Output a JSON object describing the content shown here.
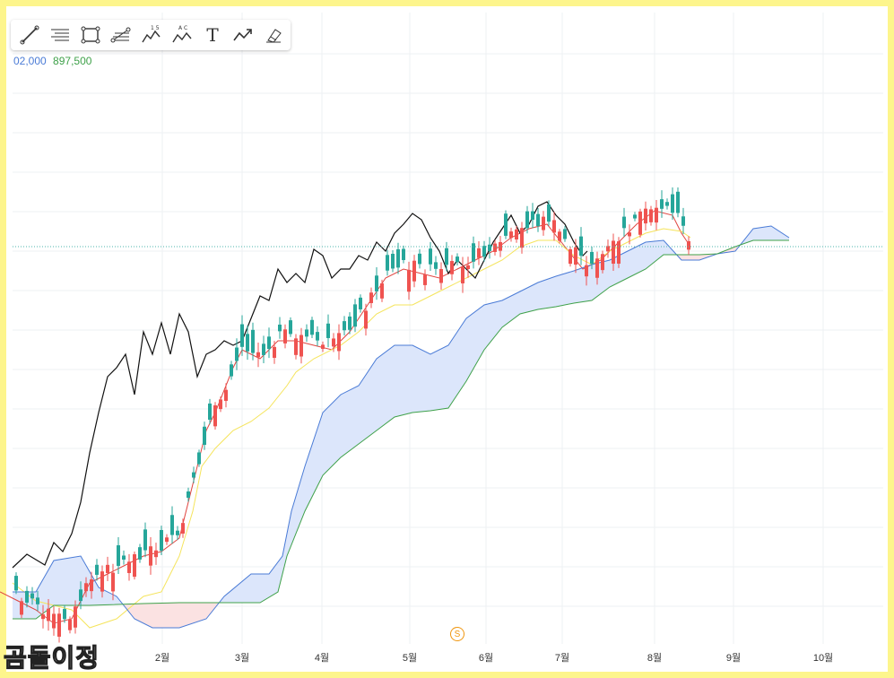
{
  "toolbar": {
    "tools": [
      "line-tool",
      "hline-tool",
      "rect-tool",
      "fib-tool",
      "wave-15-tool",
      "wave-ac-tool",
      "text-tool",
      "trend-tool",
      "brush-tool"
    ],
    "text_tool_label": "T",
    "wave_15_label": "1 5",
    "wave_ac_label": "A C"
  },
  "legend_values": {
    "span_a_value": "02,000",
    "span_b_value": "897,500"
  },
  "badge": {
    "label": "S"
  },
  "watermark": "곰돌이정",
  "colors": {
    "up": "#26a69a",
    "down": "#ef5350",
    "tenkan": "#e0443f",
    "kijun": "#f5e45c",
    "chikou": "#111111",
    "span_a": "#4a7bd6",
    "span_b": "#3fa14a",
    "cloud_bull": "#dce6fb",
    "cloud_bear": "#fbe2e2",
    "last_price": "#4db6ac"
  },
  "chart_data": {
    "type": "candlestick-ichimoku",
    "x_tick_labels": [
      "2월",
      "3월",
      "4월",
      "5월",
      "6월",
      "7월",
      "8월",
      "9월",
      "10월"
    ],
    "x_tick_months": [
      2,
      3,
      4,
      5,
      6,
      7,
      8,
      9,
      10
    ],
    "series": [
      {
        "name": "tenkan",
        "values": [
          [
            0,
            660
          ],
          [
            20,
            670
          ],
          [
            40,
            680
          ],
          [
            60,
            695
          ],
          [
            80,
            690
          ],
          [
            100,
            650
          ],
          [
            120,
            640
          ],
          [
            140,
            630
          ],
          [
            160,
            620
          ],
          [
            180,
            615
          ],
          [
            200,
            600
          ],
          [
            210,
            560
          ],
          [
            220,
            520
          ],
          [
            230,
            480
          ],
          [
            240,
            460
          ],
          [
            260,
            410
          ],
          [
            270,
            390
          ],
          [
            290,
            400
          ],
          [
            310,
            380
          ],
          [
            330,
            380
          ],
          [
            350,
            385
          ],
          [
            370,
            390
          ],
          [
            390,
            370
          ],
          [
            410,
            340
          ],
          [
            430,
            310
          ],
          [
            450,
            300
          ],
          [
            470,
            305
          ],
          [
            490,
            310
          ],
          [
            510,
            300
          ],
          [
            530,
            290
          ],
          [
            550,
            280
          ],
          [
            570,
            265
          ],
          [
            590,
            255
          ],
          [
            610,
            250
          ],
          [
            630,
            275
          ],
          [
            650,
            300
          ],
          [
            670,
            290
          ],
          [
            690,
            270
          ],
          [
            710,
            250
          ],
          [
            730,
            235
          ],
          [
            750,
            240
          ],
          [
            760,
            260
          ],
          [
            770,
            275
          ]
        ]
      },
      {
        "name": "kijun",
        "values": [
          [
            14,
            650
          ],
          [
            40,
            670
          ],
          [
            80,
            680
          ],
          [
            100,
            700
          ],
          [
            130,
            690
          ],
          [
            160,
            665
          ],
          [
            180,
            660
          ],
          [
            200,
            620
          ],
          [
            215,
            570
          ],
          [
            225,
            520
          ],
          [
            240,
            500
          ],
          [
            260,
            480
          ],
          [
            280,
            470
          ],
          [
            300,
            455
          ],
          [
            320,
            430
          ],
          [
            330,
            415
          ],
          [
            350,
            400
          ],
          [
            380,
            385
          ],
          [
            400,
            370
          ],
          [
            410,
            360
          ],
          [
            420,
            350
          ],
          [
            440,
            340
          ],
          [
            460,
            340
          ],
          [
            480,
            330
          ],
          [
            500,
            320
          ],
          [
            520,
            310
          ],
          [
            540,
            300
          ],
          [
            560,
            290
          ],
          [
            580,
            275
          ],
          [
            600,
            268
          ],
          [
            620,
            268
          ],
          [
            640,
            285
          ],
          [
            660,
            295
          ],
          [
            680,
            280
          ],
          [
            700,
            270
          ],
          [
            720,
            260
          ],
          [
            740,
            255
          ],
          [
            760,
            258
          ],
          [
            770,
            265
          ]
        ]
      },
      {
        "name": "chikou",
        "values": [
          [
            14,
            633
          ],
          [
            30,
            618
          ],
          [
            50,
            630
          ],
          [
            60,
            605
          ],
          [
            70,
            615
          ],
          [
            80,
            595
          ],
          [
            90,
            560
          ],
          [
            100,
            505
          ],
          [
            110,
            460
          ],
          [
            120,
            420
          ],
          [
            130,
            410
          ],
          [
            140,
            395
          ],
          [
            150,
            440
          ],
          [
            160,
            370
          ],
          [
            170,
            395
          ],
          [
            180,
            360
          ],
          [
            190,
            395
          ],
          [
            200,
            350
          ],
          [
            210,
            370
          ],
          [
            220,
            420
          ],
          [
            230,
            395
          ],
          [
            240,
            390
          ],
          [
            250,
            380
          ],
          [
            260,
            385
          ],
          [
            270,
            380
          ],
          [
            280,
            355
          ],
          [
            290,
            330
          ],
          [
            300,
            335
          ],
          [
            310,
            300
          ],
          [
            320,
            315
          ],
          [
            330,
            305
          ],
          [
            340,
            315
          ],
          [
            350,
            278
          ],
          [
            360,
            285
          ],
          [
            370,
            310
          ],
          [
            380,
            300
          ],
          [
            390,
            300
          ],
          [
            400,
            285
          ],
          [
            410,
            290
          ],
          [
            420,
            270
          ],
          [
            430,
            280
          ],
          [
            440,
            260
          ],
          [
            450,
            250
          ],
          [
            460,
            238
          ],
          [
            470,
            245
          ],
          [
            480,
            265
          ],
          [
            490,
            280
          ],
          [
            500,
            305
          ],
          [
            510,
            290
          ],
          [
            520,
            300
          ],
          [
            530,
            310
          ],
          [
            540,
            290
          ],
          [
            550,
            270
          ],
          [
            560,
            255
          ],
          [
            570,
            240
          ],
          [
            580,
            260
          ],
          [
            590,
            250
          ],
          [
            600,
            230
          ],
          [
            610,
            225
          ],
          [
            620,
            240
          ],
          [
            630,
            250
          ],
          [
            640,
            270
          ],
          [
            650,
            285
          ],
          [
            655,
            280
          ]
        ]
      },
      {
        "name": "span_a",
        "values": [
          [
            14,
            660
          ],
          [
            40,
            660
          ],
          [
            60,
            625
          ],
          [
            90,
            620
          ],
          [
            110,
            655
          ],
          [
            130,
            665
          ],
          [
            150,
            690
          ],
          [
            170,
            700
          ],
          [
            200,
            700
          ],
          [
            230,
            690
          ],
          [
            250,
            665
          ],
          [
            280,
            640
          ],
          [
            300,
            640
          ],
          [
            315,
            620
          ],
          [
            325,
            570
          ],
          [
            340,
            520
          ],
          [
            360,
            460
          ],
          [
            380,
            440
          ],
          [
            400,
            430
          ],
          [
            420,
            400
          ],
          [
            440,
            385
          ],
          [
            460,
            385
          ],
          [
            480,
            395
          ],
          [
            500,
            385
          ],
          [
            520,
            355
          ],
          [
            540,
            340
          ],
          [
            560,
            335
          ],
          [
            580,
            325
          ],
          [
            600,
            315
          ],
          [
            620,
            308
          ],
          [
            640,
            302
          ],
          [
            660,
            295
          ],
          [
            680,
            290
          ],
          [
            700,
            280
          ],
          [
            720,
            270
          ],
          [
            740,
            268
          ],
          [
            760,
            290
          ],
          [
            780,
            290
          ],
          [
            800,
            283
          ],
          [
            820,
            280
          ],
          [
            840,
            255
          ],
          [
            860,
            252
          ],
          [
            880,
            265
          ]
        ]
      },
      {
        "name": "span_b",
        "values": [
          [
            14,
            690
          ],
          [
            40,
            690
          ],
          [
            60,
            675
          ],
          [
            100,
            675
          ],
          [
            160,
            673
          ],
          [
            200,
            672
          ],
          [
            250,
            672
          ],
          [
            290,
            672
          ],
          [
            310,
            660
          ],
          [
            320,
            620
          ],
          [
            340,
            570
          ],
          [
            360,
            530
          ],
          [
            380,
            510
          ],
          [
            400,
            495
          ],
          [
            420,
            480
          ],
          [
            440,
            465
          ],
          [
            460,
            460
          ],
          [
            480,
            458
          ],
          [
            500,
            455
          ],
          [
            520,
            425
          ],
          [
            540,
            390
          ],
          [
            560,
            365
          ],
          [
            580,
            350
          ],
          [
            600,
            345
          ],
          [
            620,
            342
          ],
          [
            640,
            338
          ],
          [
            660,
            335
          ],
          [
            680,
            320
          ],
          [
            700,
            310
          ],
          [
            720,
            300
          ],
          [
            740,
            284
          ],
          [
            760,
            284
          ],
          [
            780,
            284
          ],
          [
            800,
            283
          ],
          [
            820,
            275
          ],
          [
            840,
            268
          ],
          [
            880,
            268
          ]
        ]
      }
    ],
    "candles_note": "OHLC values in price pixels not labeled; reproduced visually"
  }
}
